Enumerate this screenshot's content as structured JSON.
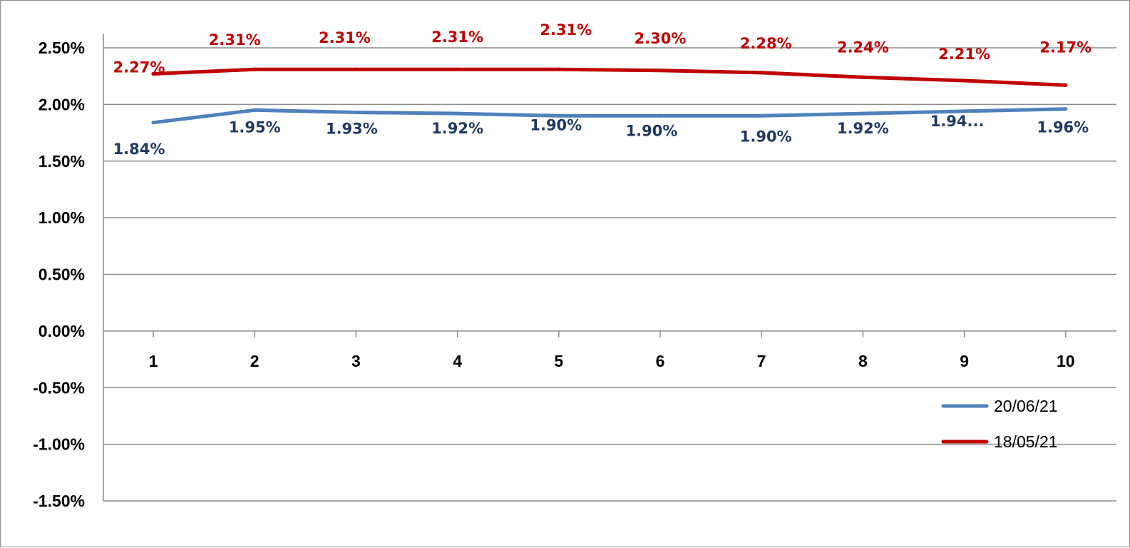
{
  "chart_data": {
    "type": "line",
    "categories": [
      "1",
      "2",
      "3",
      "4",
      "5",
      "6",
      "7",
      "8",
      "9",
      "10"
    ],
    "y_tick_labels": [
      "2.50%",
      "2.00%",
      "1.50%",
      "1.00%",
      "0.50%",
      "0.00%",
      "-0.50%",
      "-1.00%",
      "-1.50%"
    ],
    "ylim": [
      -1.5,
      2.5
    ],
    "grid": true,
    "legend_placement": "bottom-right",
    "series": [
      {
        "name": "20/06/21",
        "color": "#4f81bd",
        "label_color": "#1f3864",
        "values": [
          1.84,
          1.95,
          1.93,
          1.92,
          1.9,
          1.9,
          1.9,
          1.92,
          1.94,
          1.96
        ],
        "labels": [
          "1.84%",
          "1.95%",
          "1.93%",
          "1.92%",
          "1.90%",
          "1.90%",
          "1.90%",
          "1.92%",
          "1.94...",
          "1.96%"
        ]
      },
      {
        "name": "18/05/21",
        "color": "#c00000",
        "label_color": "#c00000",
        "values": [
          2.27,
          2.31,
          2.31,
          2.31,
          2.31,
          2.3,
          2.28,
          2.24,
          2.21,
          2.17
        ],
        "labels": [
          "2.27%",
          "2.31%",
          "2.31%",
          "2.31%",
          "2.31%",
          "2.30%",
          "2.28%",
          "2.24%",
          "2.21%",
          "2.17%"
        ]
      }
    ]
  }
}
